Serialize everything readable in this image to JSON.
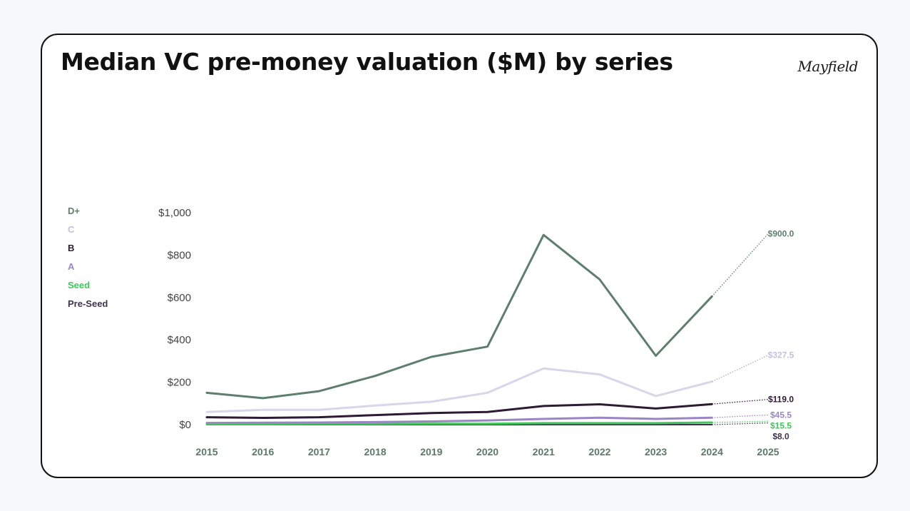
{
  "title": "Median VC pre-money valuation ($M) by series",
  "logo": "Mayfield",
  "chart_data": {
    "type": "line",
    "title": "Median VC pre-money valuation ($M) by series",
    "xlabel": "",
    "ylabel": "",
    "x": [
      2015,
      2016,
      2017,
      2018,
      2019,
      2020,
      2021,
      2022,
      2023,
      2024
    ],
    "x_ticks": [
      "2015",
      "2016",
      "2017",
      "2018",
      "2019",
      "2020",
      "2021",
      "2022",
      "2023",
      "2024",
      "2025"
    ],
    "ylim": [
      0,
      1000
    ],
    "y_ticks": [
      {
        "value": 0,
        "label": "$0"
      },
      {
        "value": 200,
        "label": "$200"
      },
      {
        "value": 400,
        "label": "$400"
      },
      {
        "value": 600,
        "label": "$600"
      },
      {
        "value": 800,
        "label": "$800"
      },
      {
        "value": 1000,
        "label": "$1,000"
      }
    ],
    "grid": false,
    "legend_position": "left",
    "projection_x": 2025,
    "series": [
      {
        "name": "D+",
        "color": "#5e7f6d",
        "width": 3,
        "values": [
          150,
          125,
          158,
          230,
          320,
          368,
          895,
          685,
          325,
          605
        ],
        "projection": 900,
        "projection_label": "$900.0"
      },
      {
        "name": "C",
        "color": "#d9d5ea",
        "width": 3,
        "values": [
          60,
          70,
          70,
          90,
          108,
          150,
          265,
          237,
          135,
          203
        ],
        "projection": 327.5,
        "projection_label": "$327.5"
      },
      {
        "name": "B",
        "color": "#2e1a33",
        "width": 3,
        "values": [
          35,
          32,
          35,
          45,
          55,
          60,
          88,
          96,
          76,
          97
        ],
        "projection": 119,
        "projection_label": "$119.0"
      },
      {
        "name": "A",
        "color": "#9b86c4",
        "width": 3,
        "values": [
          8,
          9,
          10,
          12,
          15,
          20,
          27,
          33,
          27,
          33
        ],
        "projection": 45.5,
        "projection_label": "$45.5"
      },
      {
        "name": "Seed",
        "color": "#3ec85a",
        "width": 3,
        "values": [
          2,
          2,
          3,
          3,
          4,
          4,
          7,
          7,
          7,
          10
        ],
        "projection": 15.5,
        "projection_label": "$15.5"
      },
      {
        "name": "Pre-Seed",
        "color": "#3d3350",
        "width": 2,
        "values": [
          0,
          0,
          0,
          0,
          0,
          0,
          0,
          0,
          0,
          0
        ],
        "projection": 8,
        "projection_label": "$8.0"
      }
    ]
  }
}
